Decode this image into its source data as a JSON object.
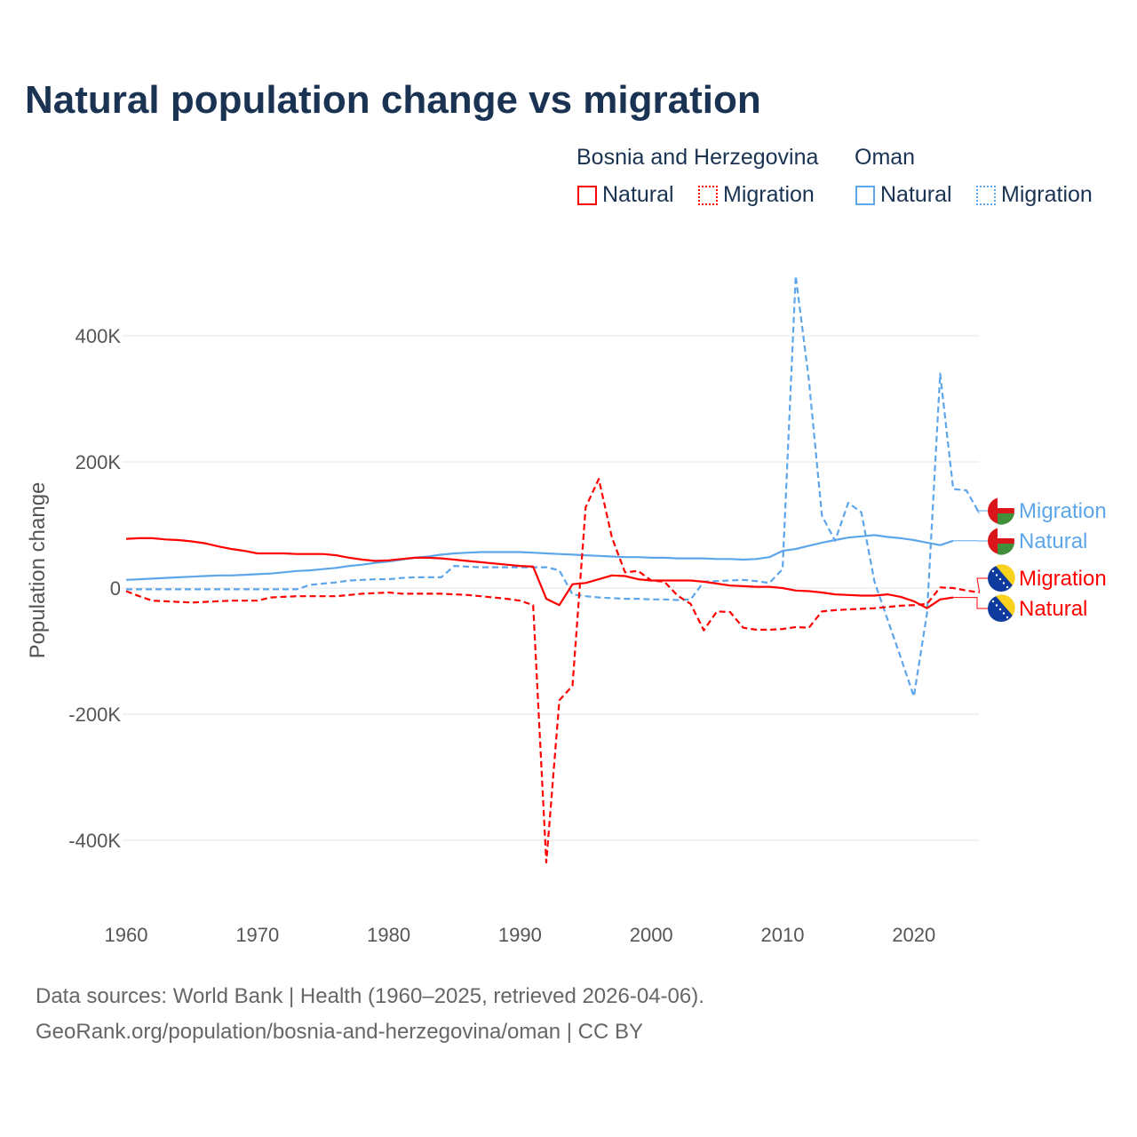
{
  "chart_data": {
    "type": "line",
    "title": "Natural population change vs migration",
    "xlabel": "",
    "ylabel": "Population change",
    "xlim": [
      1960,
      2025
    ],
    "ylim": [
      -500000,
      500000
    ],
    "x_ticks": [
      1960,
      1970,
      1980,
      1990,
      2000,
      2010,
      2020
    ],
    "x_tick_labels": [
      "1960",
      "1970",
      "1980",
      "1990",
      "2000",
      "2010",
      "2020"
    ],
    "y_ticks": [
      400000,
      200000,
      0,
      -200000,
      -400000
    ],
    "y_tick_labels": [
      "400K",
      "200K",
      "0",
      "-200K",
      "-400K"
    ],
    "grid": true,
    "legend_position": "top-right",
    "legend_groups": [
      {
        "name": "Bosnia and Herzegovina",
        "items": [
          "Natural",
          "Migration"
        ]
      },
      {
        "name": "Oman",
        "items": [
          "Natural",
          "Migration"
        ]
      }
    ],
    "start_year": 1960,
    "series": [
      {
        "name": "Oman Migration",
        "label": "Migration",
        "country": "Oman",
        "color": "#5ea6ea",
        "dashed": true,
        "values_k": [
          -2,
          -2,
          -2,
          -2,
          -2,
          -2,
          -2,
          -2,
          -2,
          -2,
          -2,
          -2,
          -2,
          -2,
          5,
          7,
          9,
          12,
          13,
          14,
          14,
          16,
          17,
          17,
          17,
          35,
          34,
          33,
          33,
          33,
          33,
          33,
          33,
          28,
          -10,
          -13,
          -15,
          -16,
          -17,
          -17,
          -18,
          -18,
          -19,
          -18,
          10,
          11,
          12,
          13,
          11,
          8,
          30,
          495,
          330,
          115,
          75,
          135,
          120,
          10,
          -50,
          -110,
          -172,
          -40,
          340,
          157,
          155,
          118
        ]
      },
      {
        "name": "Oman Natural",
        "label": "Natural",
        "country": "Oman",
        "color": "#5ea6ea",
        "dashed": false,
        "values_k": [
          13,
          14,
          15,
          16,
          17,
          18,
          19,
          20,
          20,
          21,
          22,
          23,
          25,
          27,
          28,
          30,
          32,
          35,
          37,
          40,
          42,
          45,
          48,
          50,
          53,
          55,
          56,
          57,
          57,
          57,
          57,
          56,
          55,
          54,
          53,
          52,
          51,
          50,
          49,
          49,
          48,
          48,
          47,
          47,
          47,
          46,
          46,
          45,
          46,
          49,
          59,
          62,
          67,
          72,
          76,
          80,
          82,
          84,
          81,
          79,
          76,
          72,
          68,
          75,
          null,
          null
        ]
      },
      {
        "name": "Bosnia and Herzegovina Migration",
        "label": "Migration",
        "country": "Bosnia and Herzegovina",
        "color": "#ff0000",
        "dashed": true,
        "values_k": [
          -5,
          -13,
          -20,
          -21,
          -22,
          -23,
          -22,
          -21,
          -20,
          -20,
          -20,
          -15,
          -14,
          -13,
          -13,
          -13,
          -13,
          -11,
          -9,
          -8,
          -7,
          -9,
          -9,
          -9,
          -9,
          -10,
          -11,
          -13,
          -15,
          -17,
          -20,
          -27,
          -435,
          -178,
          -155,
          128,
          173,
          80,
          25,
          27,
          12,
          10,
          -12,
          -25,
          -67,
          -37,
          -38,
          -63,
          -66,
          -66,
          -65,
          -62,
          -63,
          -37,
          -35,
          -34,
          -33,
          -32,
          -30,
          -28,
          -27,
          -25,
          1,
          0,
          -4,
          -7
        ]
      },
      {
        "name": "Bosnia and Herzegovina Natural",
        "label": "Natural",
        "country": "Bosnia and Herzegovina",
        "color": "#ff0000",
        "dashed": false,
        "values_k": [
          78,
          79,
          79,
          77,
          76,
          74,
          71,
          66,
          62,
          59,
          55,
          55,
          55,
          54,
          54,
          54,
          52,
          48,
          45,
          43,
          44,
          46,
          48,
          48,
          47,
          45,
          43,
          41,
          39,
          37,
          35,
          34,
          -17,
          -27,
          6,
          8,
          14,
          20,
          19,
          14,
          12,
          12,
          12,
          12,
          10,
          7,
          4,
          3,
          2,
          2,
          0,
          -4,
          -5,
          -7,
          -10,
          -11,
          -12,
          -12,
          -10,
          -14,
          -21,
          -32,
          -18,
          -15,
          null,
          null
        ]
      }
    ]
  },
  "legend": {
    "group1": "Bosnia and Herzegovina",
    "group2": "Oman",
    "natural": "Natural",
    "migration": "Migration"
  },
  "end_labels": [
    "Migration",
    "Natural",
    "Migration",
    "Natural"
  ],
  "footer": {
    "line1": "Data sources: World Bank | Health (1960–2025, retrieved 2026-04-06).",
    "line2": "GeoRank.org/population/bosnia-and-herzegovina/oman | CC BY"
  }
}
